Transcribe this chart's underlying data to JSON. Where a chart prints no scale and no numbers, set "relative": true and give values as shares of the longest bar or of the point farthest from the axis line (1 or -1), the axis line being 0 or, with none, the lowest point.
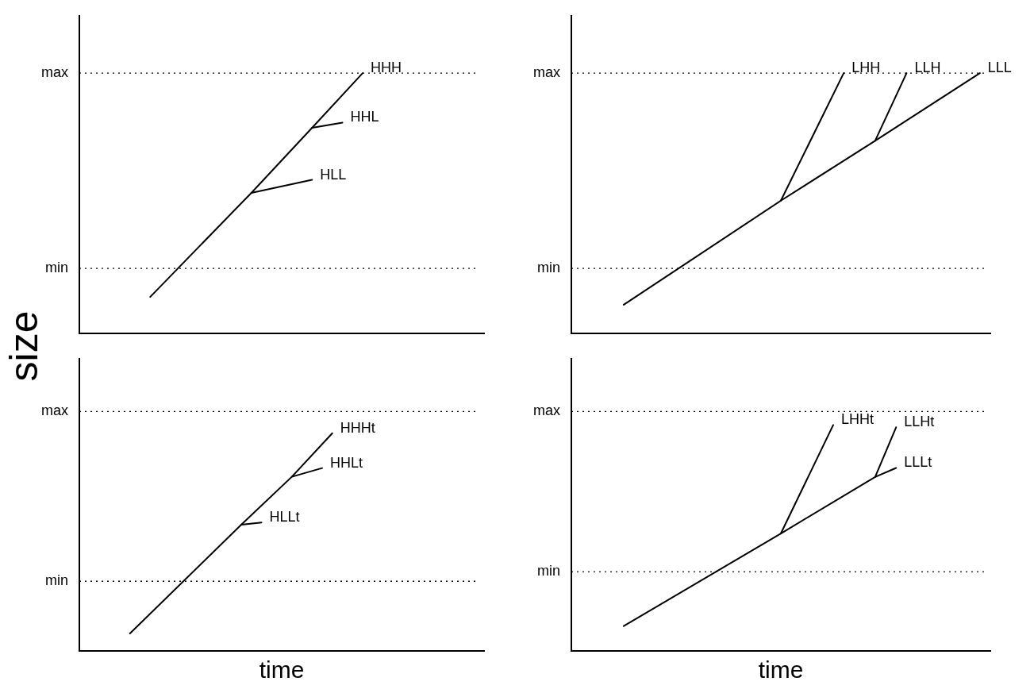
{
  "chart_data": [
    {
      "type": "line",
      "ylabel": "size",
      "relative": true,
      "tick_labels": false,
      "marker": "none",
      "categories": [
        null,
        null,
        null,
        null,
        null,
        null,
        null,
        null,
        null,
        null,
        null,
        null,
        null,
        null,
        null,
        null,
        null,
        null,
        null,
        null,
        null,
        null,
        null,
        null,
        null,
        null,
        null,
        null,
        null,
        null,
        null,
        null,
        null,
        null,
        null,
        null,
        null,
        null,
        null,
        null,
        null
      ],
      "ref_lines": [
        {
          "axis": "y",
          "value": 0.25,
          "label": "min",
          "line_style": "dotted",
          "color": "#000000"
        },
        {
          "axis": "y",
          "value": 1,
          "label": "max",
          "line_style": "dotted",
          "color": "#000000"
        }
      ],
      "series": [
        {
          "name": "HHH",
          "color": "#000000",
          "values": [
            null,
            null,
            null,
            null,
            null,
            null,
            null,
            0.14,
            null,
            null,
            null,
            null,
            null,
            null,
            null,
            null,
            null,
            0.54,
            null,
            null,
            null,
            null,
            null,
            0.79,
            null,
            null,
            null,
            null,
            1,
            null,
            null,
            null,
            null,
            null,
            null,
            null,
            null,
            null,
            null,
            null,
            null
          ]
        },
        {
          "name": "HHL",
          "color": "#000000",
          "values": [
            null,
            null,
            null,
            null,
            null,
            null,
            null,
            null,
            null,
            null,
            null,
            null,
            null,
            null,
            null,
            null,
            null,
            null,
            null,
            null,
            null,
            null,
            null,
            0.79,
            null,
            null,
            0.81,
            null,
            null,
            null,
            null,
            null,
            null,
            null,
            null,
            null,
            null,
            null,
            null,
            null,
            null
          ]
        },
        {
          "name": "HLL",
          "color": "#000000",
          "values": [
            null,
            null,
            null,
            null,
            null,
            null,
            null,
            null,
            null,
            null,
            null,
            null,
            null,
            null,
            null,
            null,
            null,
            0.54,
            null,
            null,
            null,
            null,
            null,
            0.59,
            null,
            null,
            null,
            null,
            null,
            null,
            null,
            null,
            null,
            null,
            null,
            null,
            null,
            null,
            null,
            null,
            null
          ]
        }
      ]
    },
    {
      "type": "line",
      "relative": true,
      "tick_labels": false,
      "marker": "none",
      "categories": [
        null,
        null,
        null,
        null,
        null,
        null,
        null,
        null,
        null,
        null,
        null,
        null,
        null,
        null,
        null,
        null,
        null,
        null,
        null,
        null,
        null,
        null,
        null,
        null,
        null,
        null,
        null,
        null,
        null,
        null,
        null,
        null,
        null,
        null,
        null,
        null,
        null,
        null,
        null,
        null,
        null
      ],
      "ref_lines": [
        {
          "axis": "y",
          "value": 0.25,
          "label": "min",
          "line_style": "dotted",
          "color": "#000000"
        },
        {
          "axis": "y",
          "value": 1,
          "label": "max",
          "line_style": "dotted",
          "color": "#000000"
        }
      ],
      "series": [
        {
          "name": "LLL",
          "color": "#000000",
          "values": [
            null,
            null,
            null,
            null,
            null,
            0.11,
            null,
            null,
            null,
            null,
            null,
            null,
            null,
            null,
            null,
            null,
            null,
            null,
            null,
            null,
            0.51,
            null,
            null,
            null,
            null,
            null,
            null,
            null,
            null,
            0.74,
            null,
            null,
            null,
            null,
            null,
            null,
            null,
            null,
            null,
            1,
            null
          ]
        },
        {
          "name": "LHH",
          "color": "#000000",
          "values": [
            null,
            null,
            null,
            null,
            null,
            null,
            null,
            null,
            null,
            null,
            null,
            null,
            null,
            null,
            null,
            null,
            null,
            null,
            null,
            null,
            0.51,
            null,
            null,
            null,
            null,
            null,
            1,
            null,
            null,
            null,
            null,
            null,
            null,
            null,
            null,
            null,
            null,
            null,
            null,
            null,
            null
          ]
        },
        {
          "name": "LLH",
          "color": "#000000",
          "values": [
            null,
            null,
            null,
            null,
            null,
            null,
            null,
            null,
            null,
            null,
            null,
            null,
            null,
            null,
            null,
            null,
            null,
            null,
            null,
            null,
            null,
            null,
            null,
            null,
            null,
            null,
            null,
            null,
            null,
            0.74,
            null,
            null,
            1,
            null,
            null,
            null,
            null,
            null,
            null,
            null,
            null
          ]
        }
      ]
    },
    {
      "type": "line",
      "xlabel": "time",
      "relative": true,
      "tick_labels": false,
      "marker": "none",
      "categories": [
        null,
        null,
        null,
        null,
        null,
        null,
        null,
        null,
        null,
        null,
        null,
        null,
        null,
        null,
        null,
        null,
        null,
        null,
        null,
        null,
        null,
        null,
        null,
        null,
        null,
        null,
        null,
        null,
        null,
        null,
        null,
        null,
        null,
        null,
        null,
        null,
        null,
        null,
        null,
        null,
        null
      ],
      "ref_lines": [
        {
          "axis": "y",
          "value": 0.32,
          "label": "min",
          "line_style": "dotted",
          "color": "#000000"
        },
        {
          "axis": "y",
          "value": 1.1,
          "label": "max",
          "line_style": "dotted",
          "color": "#000000"
        }
      ],
      "series": [
        {
          "name": "HHHt",
          "color": "#000000",
          "values": [
            null,
            null,
            null,
            null,
            null,
            0.08,
            null,
            null,
            null,
            null,
            null,
            null,
            null,
            null,
            null,
            null,
            0.58,
            null,
            null,
            null,
            null,
            0.8,
            null,
            null,
            null,
            1,
            null,
            null,
            null,
            null,
            null,
            null,
            null,
            null,
            null,
            null,
            null,
            null,
            null,
            null,
            null
          ]
        },
        {
          "name": "HHLt",
          "color": "#000000",
          "values": [
            null,
            null,
            null,
            null,
            null,
            null,
            null,
            null,
            null,
            null,
            null,
            null,
            null,
            null,
            null,
            null,
            null,
            null,
            null,
            null,
            null,
            0.8,
            null,
            null,
            0.84,
            null,
            null,
            null,
            null,
            null,
            null,
            null,
            null,
            null,
            null,
            null,
            null,
            null,
            null,
            null,
            null
          ]
        },
        {
          "name": "HLLt",
          "color": "#000000",
          "values": [
            null,
            null,
            null,
            null,
            null,
            null,
            null,
            null,
            null,
            null,
            null,
            null,
            null,
            null,
            null,
            null,
            0.58,
            null,
            0.59,
            null,
            null,
            null,
            null,
            null,
            null,
            null,
            null,
            null,
            null,
            null,
            null,
            null,
            null,
            null,
            null,
            null,
            null,
            null,
            null,
            null,
            null
          ]
        }
      ]
    },
    {
      "type": "line",
      "xlabel": "time",
      "relative": true,
      "tick_labels": false,
      "marker": "none",
      "categories": [
        null,
        null,
        null,
        null,
        null,
        null,
        null,
        null,
        null,
        null,
        null,
        null,
        null,
        null,
        null,
        null,
        null,
        null,
        null,
        null,
        null,
        null,
        null,
        null,
        null,
        null,
        null,
        null,
        null,
        null,
        null,
        null,
        null,
        null,
        null,
        null,
        null,
        null,
        null,
        null,
        null
      ],
      "ref_lines": [
        {
          "axis": "y",
          "value": 0.35,
          "label": "min",
          "line_style": "dotted",
          "color": "#000000"
        },
        {
          "axis": "y",
          "value": 1.06,
          "label": "max",
          "line_style": "dotted",
          "color": "#000000"
        }
      ],
      "series": [
        {
          "name": "LLLt",
          "color": "#000000",
          "values": [
            null,
            null,
            null,
            null,
            null,
            0.11,
            null,
            null,
            null,
            null,
            null,
            null,
            null,
            null,
            null,
            null,
            null,
            null,
            null,
            null,
            0.52,
            null,
            null,
            null,
            null,
            null,
            null,
            null,
            null,
            0.77,
            null,
            0.81,
            null,
            null,
            null,
            null,
            null,
            null,
            null,
            null,
            null
          ]
        },
        {
          "name": "LHHt",
          "color": "#000000",
          "values": [
            null,
            null,
            null,
            null,
            null,
            null,
            null,
            null,
            null,
            null,
            null,
            null,
            null,
            null,
            null,
            null,
            null,
            null,
            null,
            null,
            0.52,
            null,
            null,
            null,
            null,
            1,
            null,
            null,
            null,
            null,
            null,
            null,
            null,
            null,
            null,
            null,
            null,
            null,
            null,
            null,
            null
          ]
        },
        {
          "name": "LLHt",
          "color": "#000000",
          "values": [
            null,
            null,
            null,
            null,
            null,
            null,
            null,
            null,
            null,
            null,
            null,
            null,
            null,
            null,
            null,
            null,
            null,
            null,
            null,
            null,
            null,
            null,
            null,
            null,
            null,
            null,
            null,
            null,
            null,
            0.77,
            null,
            0.99,
            null,
            null,
            null,
            null,
            null,
            null,
            null,
            null,
            null
          ]
        }
      ]
    }
  ]
}
